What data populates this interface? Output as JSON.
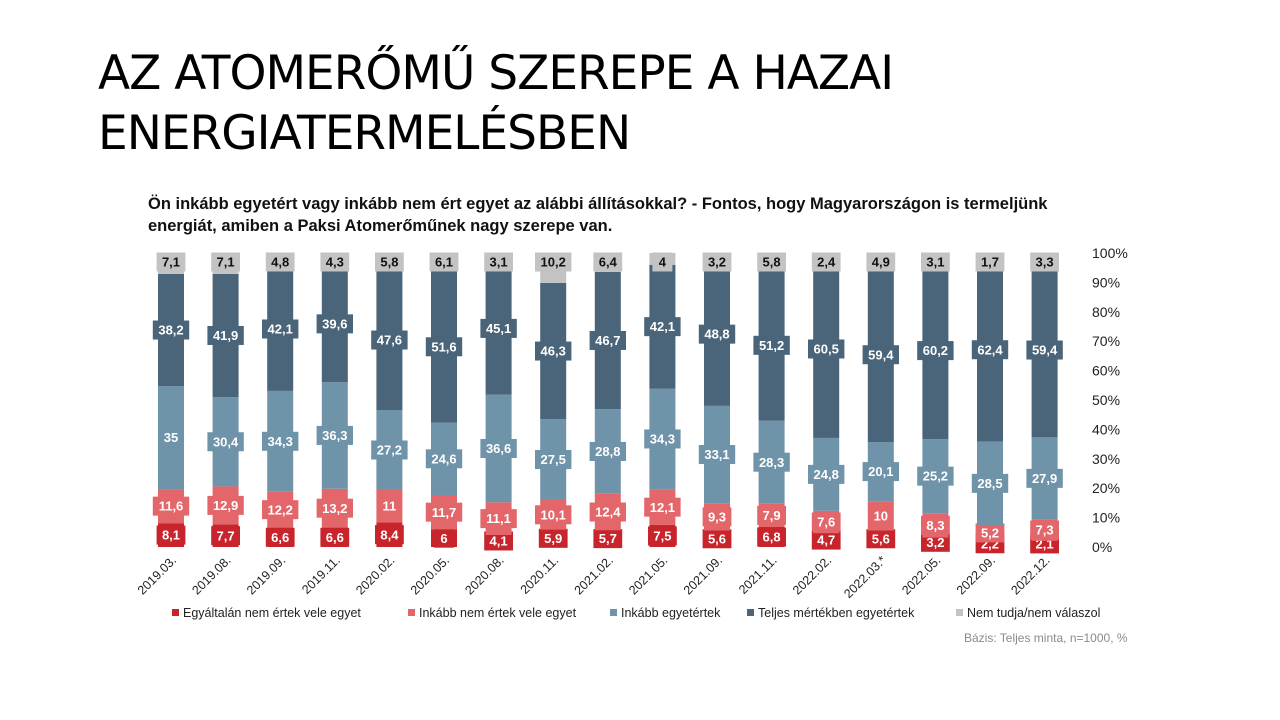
{
  "slide": {
    "title_lines": [
      "AZ ATOMERŐMŰ SZEREPE A HAZAI",
      "ENERGIATERMELÉSBEN"
    ]
  },
  "question": {
    "lines": [
      "Ön inkább egyetért vagy inkább nem ért egyet az alábbi állításokkal? - Fontos, hogy Magyarországon is termeljünk",
      "energiát, amiben a Paksi Atomerőműnek nagy szerepe van."
    ]
  },
  "colors": {
    "s1": "#c8242c",
    "s2": "#e3676a",
    "s3": "#6f93a8",
    "s4": "#4a6479",
    "s5": "#c3c3c3"
  },
  "chart_data": {
    "type": "bar",
    "stacked": true,
    "percent_axis": true,
    "categories": [
      "2019.03.",
      "2019.08.",
      "2019.09.",
      "2019.11.",
      "2020.02.",
      "2020.05.",
      "2020.08.",
      "2020.11.",
      "2021.02.",
      "2021.05.",
      "2021.09.",
      "2021.11.",
      "2022.02.",
      "2022.03.*",
      "2022.05.",
      "2022.09.",
      "2022.12."
    ],
    "series": [
      {
        "name": "Egyáltalán nem értek vele egyet",
        "color": "#c8242c",
        "values": [
          8.1,
          7.7,
          6.6,
          6.6,
          8.4,
          6,
          4.1,
          5.9,
          5.7,
          7.5,
          5.6,
          6.8,
          4.7,
          5.6,
          3.2,
          2.2,
          2.1
        ],
        "labels": [
          "8,1",
          "7,7",
          "6,6",
          "6,6",
          "8,4",
          "6",
          "4,1",
          "5,9",
          "5,7",
          "7,5",
          "5,6",
          "6,8",
          "4,7",
          "5,6",
          "3,2",
          "2,2",
          "2,1"
        ]
      },
      {
        "name": "Inkább nem értek vele egyet",
        "color": "#e3676a",
        "values": [
          11.6,
          12.9,
          12.2,
          13.2,
          11,
          11.7,
          11.1,
          10.1,
          12.4,
          12.1,
          9.3,
          7.9,
          7.6,
          10,
          8.3,
          5.2,
          7.3
        ],
        "labels": [
          "11,6",
          "12,9",
          "12,2",
          "13,2",
          "11",
          "11,7",
          "11,1",
          "10,1",
          "12,4",
          "12,1",
          "9,3",
          "7,9",
          "7,6",
          "10",
          "8,3",
          "5,2",
          "7,3"
        ]
      },
      {
        "name": "Inkább egyetértek",
        "color": "#6f93a8",
        "values": [
          35,
          30.4,
          34.3,
          36.3,
          27.2,
          24.6,
          36.6,
          27.5,
          28.8,
          34.3,
          33.1,
          28.3,
          24.8,
          20.1,
          25.2,
          28.5,
          27.9
        ],
        "labels": [
          "35",
          "30,4",
          "34,3",
          "36,3",
          "27,2",
          "24,6",
          "36,6",
          "27,5",
          "28,8",
          "34,3",
          "33,1",
          "28,3",
          "24,8",
          "20,1",
          "25,2",
          "28,5",
          "27,9"
        ]
      },
      {
        "name": "Teljes mértékben egyetértek",
        "color": "#4a6479",
        "values": [
          38.2,
          41.9,
          42.1,
          39.6,
          47.6,
          51.6,
          45.1,
          46.3,
          46.7,
          42.1,
          48.8,
          51.2,
          60.5,
          59.4,
          60.2,
          62.4,
          59.4
        ],
        "labels": [
          "38,2",
          "41,9",
          "42,1",
          "39,6",
          "47,6",
          "51,6",
          "45,1",
          "46,3",
          "46,7",
          "42,1",
          "48,8",
          "51,2",
          "60,5",
          "59,4",
          "60,2",
          "62,4",
          "59,4"
        ]
      },
      {
        "name": "Nem tudja/nem válaszol",
        "color": "#c3c3c3",
        "values": [
          7.1,
          7.1,
          4.8,
          4.3,
          5.8,
          6.1,
          3.1,
          10.2,
          6.4,
          4,
          3.2,
          5.8,
          2.4,
          4.9,
          3.1,
          1.7,
          3.3
        ],
        "labels": [
          "7,1",
          "7,1",
          "4,8",
          "4,3",
          "5,8",
          "6,1",
          "3,1",
          "10,2",
          "6,4",
          "4",
          "3,2",
          "5,8",
          "2,4",
          "4,9",
          "3,1",
          "1,7",
          "3,3"
        ]
      }
    ],
    "y_ticks": [
      "0%",
      "10%",
      "20%",
      "30%",
      "40%",
      "50%",
      "60%",
      "70%",
      "80%",
      "90%",
      "100%"
    ],
    "ylim": [
      0,
      100
    ],
    "legend_position": "bottom",
    "grid": false
  },
  "footer": {
    "base_note": "Bázis: Teljes minta, n=1000, %"
  }
}
